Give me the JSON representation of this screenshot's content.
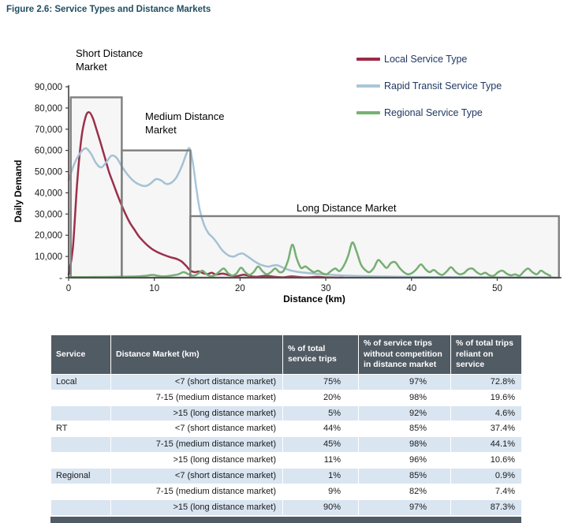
{
  "figure": {
    "title": "Figure 2.6: Service Types and Distance Markets"
  },
  "chart_data": {
    "type": "line",
    "xlabel": "Distance (km)",
    "ylabel": "Daily Demand",
    "xlim": [
      0,
      57.5
    ],
    "ylim": [
      0,
      90000
    ],
    "grid": false,
    "legend_position": "top-right",
    "xticks": [
      {
        "v": 0,
        "label": "0"
      },
      {
        "v": 10,
        "label": "10"
      },
      {
        "v": 20,
        "label": "20"
      },
      {
        "v": 30,
        "label": "30"
      },
      {
        "v": 40,
        "label": "40"
      },
      {
        "v": 50,
        "label": "50"
      }
    ],
    "yticks": [
      {
        "v": 90000,
        "label": "90,000"
      },
      {
        "v": 80000,
        "label": "80,000"
      },
      {
        "v": 70000,
        "label": "70,000"
      },
      {
        "v": 60000,
        "label": "60,000"
      },
      {
        "v": 50000,
        "label": "50,000"
      },
      {
        "v": 40000,
        "label": "40,000"
      },
      {
        "v": 30000,
        "label": "30,000"
      },
      {
        "v": 20000,
        "label": "20,000"
      },
      {
        "v": 10000,
        "label": "10,000"
      },
      {
        "v": 0,
        "label": "-"
      }
    ],
    "regions": [
      {
        "label": "Short Distance Market",
        "x0": 0.25,
        "x1": 6.2,
        "y0": 0,
        "y1": 85000
      },
      {
        "label": "Medium Distance Market",
        "x0": 6.2,
        "x1": 14.2,
        "y0": 0,
        "y1": 60000
      },
      {
        "label": "Long Distance Market",
        "x0": 14.2,
        "x1": 57.2,
        "y0": 0,
        "y1": 29000
      }
    ],
    "series": [
      {
        "name": "Local Service Type",
        "color": "#9E2A47",
        "points": [
          [
            0,
            1500
          ],
          [
            0.5,
            14000
          ],
          [
            1,
            45000
          ],
          [
            1.5,
            66000
          ],
          [
            2,
            76000
          ],
          [
            2.4,
            78000
          ],
          [
            2.8,
            75500
          ],
          [
            3.2,
            70500
          ],
          [
            3.7,
            64000
          ],
          [
            4.2,
            57000
          ],
          [
            4.7,
            50000
          ],
          [
            5.2,
            44500
          ],
          [
            5.7,
            39000
          ],
          [
            6.2,
            34000
          ],
          [
            6.7,
            29500
          ],
          [
            7.2,
            25500
          ],
          [
            7.7,
            22500
          ],
          [
            8.2,
            19500
          ],
          [
            8.7,
            17200
          ],
          [
            9.2,
            15200
          ],
          [
            9.7,
            13600
          ],
          [
            10.2,
            12400
          ],
          [
            10.7,
            11400
          ],
          [
            11.2,
            10600
          ],
          [
            11.7,
            9900
          ],
          [
            12.2,
            9300
          ],
          [
            12.7,
            8700
          ],
          [
            13.2,
            7600
          ],
          [
            13.7,
            5600
          ],
          [
            14.2,
            3400
          ],
          [
            14.7,
            2600
          ],
          [
            15.2,
            2900
          ],
          [
            15.7,
            2100
          ],
          [
            16.2,
            1700
          ],
          [
            16.7,
            2300
          ],
          [
            17.2,
            1500
          ],
          [
            18,
            1900
          ],
          [
            18.8,
            1100
          ],
          [
            19.6,
            700
          ],
          [
            20.4,
            1400
          ],
          [
            21.2,
            700
          ],
          [
            22,
            400
          ],
          [
            23,
            900
          ],
          [
            24,
            400
          ],
          [
            25,
            200
          ],
          [
            26,
            600
          ],
          [
            27,
            250
          ],
          [
            28,
            150
          ],
          [
            29,
            400
          ],
          [
            30,
            150
          ],
          [
            31,
            80
          ],
          [
            32,
            40
          ]
        ]
      },
      {
        "name": "Rapid Transit Service Type",
        "color": "#A8C6DB",
        "points": [
          [
            0,
            46000
          ],
          [
            0.7,
            54000
          ],
          [
            1.4,
            59000
          ],
          [
            2,
            61000
          ],
          [
            2.6,
            58500
          ],
          [
            3.2,
            54000
          ],
          [
            3.8,
            52000
          ],
          [
            4.4,
            54500
          ],
          [
            5,
            57500
          ],
          [
            5.6,
            56500
          ],
          [
            6.2,
            52500
          ],
          [
            6.9,
            48500
          ],
          [
            7.6,
            45500
          ],
          [
            8.3,
            43800
          ],
          [
            9,
            43200
          ],
          [
            9.6,
            44500
          ],
          [
            10.2,
            46500
          ],
          [
            10.8,
            45800
          ],
          [
            11.4,
            44200
          ],
          [
            12,
            44800
          ],
          [
            12.6,
            47500
          ],
          [
            13.2,
            52500
          ],
          [
            13.7,
            58000
          ],
          [
            14.1,
            61000
          ],
          [
            14.5,
            54000
          ],
          [
            14.9,
            42000
          ],
          [
            15.3,
            32000
          ],
          [
            15.8,
            25000
          ],
          [
            16.3,
            21000
          ],
          [
            16.8,
            19000
          ],
          [
            17.3,
            16500
          ],
          [
            17.8,
            13500
          ],
          [
            18.3,
            11500
          ],
          [
            18.8,
            10200
          ],
          [
            19.3,
            10000
          ],
          [
            19.8,
            11000
          ],
          [
            20.3,
            11400
          ],
          [
            20.8,
            10200
          ],
          [
            21.3,
            8800
          ],
          [
            21.8,
            7400
          ],
          [
            22.3,
            6300
          ],
          [
            22.8,
            5600
          ],
          [
            23.3,
            5200
          ],
          [
            23.8,
            5700
          ],
          [
            24.3,
            5900
          ],
          [
            24.8,
            5100
          ],
          [
            25.3,
            4200
          ],
          [
            26,
            3300
          ],
          [
            26.8,
            2700
          ],
          [
            27.6,
            2300
          ],
          [
            28.4,
            2000
          ],
          [
            29.2,
            1700
          ],
          [
            30,
            1500
          ],
          [
            31,
            1250
          ],
          [
            32,
            1050
          ],
          [
            33.5,
            850
          ],
          [
            35,
            700
          ],
          [
            37,
            550
          ],
          [
            39,
            420
          ],
          [
            41,
            330
          ],
          [
            44,
            260
          ],
          [
            47,
            200
          ],
          [
            50,
            160
          ],
          [
            53,
            130
          ],
          [
            56.5,
            100
          ]
        ]
      },
      {
        "name": "Regional Service Type",
        "color": "#76B272",
        "points": [
          [
            0,
            250
          ],
          [
            2,
            300
          ],
          [
            4,
            350
          ],
          [
            6,
            450
          ],
          [
            8,
            600
          ],
          [
            9,
            900
          ],
          [
            9.8,
            1300
          ],
          [
            10.4,
            900
          ],
          [
            11,
            600
          ],
          [
            12,
            1000
          ],
          [
            12.8,
            1600
          ],
          [
            13.4,
            2600
          ],
          [
            14,
            1600
          ],
          [
            14.6,
            900
          ],
          [
            15.1,
            1900
          ],
          [
            15.6,
            3300
          ],
          [
            16.1,
            1600
          ],
          [
            16.6,
            700
          ],
          [
            17.1,
            1300
          ],
          [
            17.6,
            2900
          ],
          [
            18.1,
            4300
          ],
          [
            18.6,
            2100
          ],
          [
            19.1,
            1000
          ],
          [
            19.6,
            2100
          ],
          [
            20.1,
            4700
          ],
          [
            20.6,
            2600
          ],
          [
            21.1,
            1300
          ],
          [
            21.6,
            2700
          ],
          [
            22.1,
            5300
          ],
          [
            22.6,
            3100
          ],
          [
            23.1,
            1600
          ],
          [
            23.6,
            2600
          ],
          [
            24.1,
            4300
          ],
          [
            24.6,
            2600
          ],
          [
            25.1,
            3300
          ],
          [
            25.6,
            8200
          ],
          [
            26.1,
            15600
          ],
          [
            26.6,
            9200
          ],
          [
            27.1,
            4600
          ],
          [
            27.6,
            5300
          ],
          [
            28.1,
            3900
          ],
          [
            28.6,
            2600
          ],
          [
            29.1,
            3300
          ],
          [
            29.6,
            2100
          ],
          [
            30.1,
            1600
          ],
          [
            30.6,
            3100
          ],
          [
            31.1,
            4300
          ],
          [
            31.6,
            3100
          ],
          [
            32.1,
            5600
          ],
          [
            32.6,
            10200
          ],
          [
            33.1,
            16600
          ],
          [
            33.6,
            12200
          ],
          [
            34.1,
            6200
          ],
          [
            34.6,
            3600
          ],
          [
            35.1,
            2600
          ],
          [
            35.6,
            4600
          ],
          [
            36.1,
            8300
          ],
          [
            36.6,
            6600
          ],
          [
            37.1,
            4600
          ],
          [
            37.6,
            6900
          ],
          [
            38.1,
            7300
          ],
          [
            38.6,
            4600
          ],
          [
            39.1,
            2600
          ],
          [
            39.6,
            1600
          ],
          [
            40.1,
            2300
          ],
          [
            40.6,
            4100
          ],
          [
            41.1,
            6300
          ],
          [
            41.6,
            4100
          ],
          [
            42.1,
            2600
          ],
          [
            42.6,
            3600
          ],
          [
            43.1,
            2100
          ],
          [
            43.6,
            1300
          ],
          [
            44.1,
            2900
          ],
          [
            44.6,
            4900
          ],
          [
            45.1,
            2900
          ],
          [
            45.6,
            1600
          ],
          [
            46.1,
            2100
          ],
          [
            46.6,
            3900
          ],
          [
            47.1,
            4300
          ],
          [
            47.6,
            2600
          ],
          [
            48.1,
            1600
          ],
          [
            48.6,
            2300
          ],
          [
            49.1,
            1100
          ],
          [
            49.6,
            900
          ],
          [
            50.1,
            2600
          ],
          [
            50.6,
            3300
          ],
          [
            51.1,
            1900
          ],
          [
            51.6,
            1100
          ],
          [
            52.1,
            1600
          ],
          [
            52.6,
            900
          ],
          [
            53.1,
            2900
          ],
          [
            53.6,
            4300
          ],
          [
            54.1,
            2600
          ],
          [
            54.6,
            1600
          ],
          [
            55.1,
            3300
          ],
          [
            55.6,
            2100
          ],
          [
            56.2,
            900
          ]
        ]
      }
    ]
  },
  "table": {
    "headers": [
      "Service",
      "Distance Market (km)",
      "% of total service trips",
      "% of service trips without competition in distance market",
      "% of total trips reliant on service"
    ],
    "rows": [
      [
        "Local",
        "<7 (short distance market)",
        "75%",
        "97%",
        "72.8%"
      ],
      [
        "",
        "7-15 (medium distance market)",
        "20%",
        "98%",
        "19.6%"
      ],
      [
        "",
        ">15 (long distance market)",
        "5%",
        "92%",
        "4.6%"
      ],
      [
        "RT",
        "<7 (short distance market)",
        "44%",
        "85%",
        "37.4%"
      ],
      [
        "",
        "7-15 (medium distance market)",
        "45%",
        "98%",
        "44.1%"
      ],
      [
        "",
        ">15 (long distance market)",
        "11%",
        "96%",
        "10.6%"
      ],
      [
        "Regional",
        "<7 (short distance market)",
        "1%",
        "85%",
        "0.9%"
      ],
      [
        "",
        "7-15 (medium distance market)",
        "9%",
        "82%",
        "7.4%"
      ],
      [
        "",
        ">15 (long distance market)",
        "90%",
        "97%",
        "87.3%"
      ]
    ]
  }
}
